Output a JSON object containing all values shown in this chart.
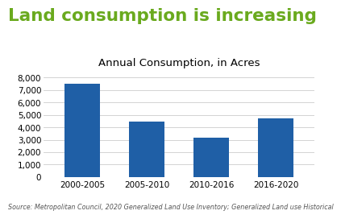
{
  "title": "Land consumption is increasing",
  "subtitle": "Annual Consumption, in Acres",
  "categories": [
    "2000-2005",
    "2005-2010",
    "2010-2016",
    "2016-2020"
  ],
  "values": [
    7500,
    4450,
    3150,
    4700
  ],
  "bar_color": "#1f5fa6",
  "title_color": "#6aaa1e",
  "subtitle_color": "#000000",
  "background_color": "#ffffff",
  "ylim": [
    0,
    8500
  ],
  "yticks": [
    0,
    1000,
    2000,
    3000,
    4000,
    5000,
    6000,
    7000,
    8000
  ],
  "source_text": "Source: Metropolitan Council, 2020 Generalized Land Use Inventory; Generalized Land use Historical",
  "title_fontsize": 15.5,
  "subtitle_fontsize": 9.5,
  "tick_fontsize": 7.5,
  "source_fontsize": 5.8
}
